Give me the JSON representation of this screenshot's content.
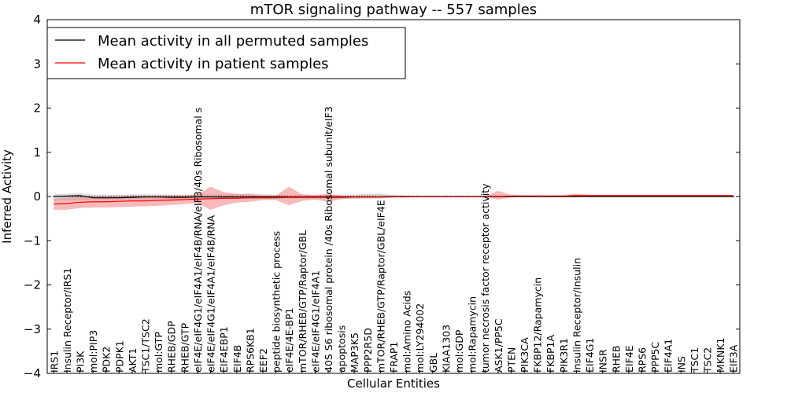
{
  "chart_data": {
    "type": "line",
    "title": "mTOR signaling pathway -- 557 samples",
    "xlabel": "Cellular Entities",
    "ylabel": "Inferred Activity",
    "ylim": [
      -4,
      4
    ],
    "yticks": [
      -4,
      -3,
      -2,
      -1,
      0,
      1,
      2,
      3,
      4
    ],
    "ytick_labels": [
      "−4",
      "−3",
      "−2",
      "−1",
      "0",
      "1",
      "2",
      "3",
      "4"
    ],
    "grid": false,
    "legend_position": "top-left",
    "colors": {
      "permuted": "#000000",
      "patient": "#ff0000",
      "permuted_band": "#bfbfbf",
      "patient_band": "#f08080"
    },
    "categories": [
      "IRS1",
      "Insulin Receptor/IRS1",
      "PI3K",
      "mol:PIP3",
      "PDK2",
      "PDPK1",
      "AKT1",
      "TSC1/TSC2",
      "mol:GTP",
      "RHEB/GDP",
      "RHEB/GTP",
      "eIF4E/eIF4G1/eIF4A1/eIF4B/RNA/eIF3/40s Ribosomal s",
      "eIF4E/eIF4G1/eIF4A1/eIF4B/RNA",
      "EIF4EBP1",
      "EIF4B",
      "RPS6KB1",
      "EEF2",
      "peptide biosynthetic process",
      "eIF4E/4E-BP1",
      "mTOR/RHEB/GTP/Raptor/GBL",
      "eIF4E/eIF4G1/eIF4A1",
      "40S S6 ribosomal protein /40s Ribosomal subunit/eIF3",
      "apoptosis",
      "MAP3K5",
      "PPP2R5D",
      "mTOR/RHEB/GTP/Raptor/GBL/eIF4E",
      "FRAP1",
      "mol:Amino Acids",
      "mol:LY294002",
      "GBL",
      "KIAA1303",
      "mol:GDP",
      "mol:Rapamycin",
      "tumor necrosis factor receptor activity",
      "ASK1/PP5C",
      "PTEN",
      "PIK3CA",
      "FKBP12/Rapamycin",
      "FKBP1A",
      "PIK3R1",
      "Insulin Receptor/Insulin",
      "EIF4G1",
      "INSR",
      "RHEB",
      "EIF4E",
      "RPS6",
      "PPP5C",
      "EIF4A1",
      "INS",
      "TSC1",
      "TSC2",
      "MKNK1",
      "EIF3A"
    ],
    "series": [
      {
        "name": "Mean activity in all permuted samples",
        "values": [
          0.0,
          0.01,
          0.02,
          -0.03,
          -0.03,
          -0.03,
          -0.02,
          -0.01,
          -0.01,
          -0.02,
          -0.02,
          -0.01,
          -0.01,
          -0.01,
          -0.01,
          -0.01,
          -0.01,
          -0.01,
          -0.01,
          -0.01,
          -0.01,
          -0.01,
          -0.01,
          -0.01,
          -0.01,
          -0.01,
          0.0,
          0.0,
          0.0,
          0.0,
          0.0,
          0.0,
          0.0,
          0.0,
          0.0,
          0.0,
          0.0,
          0.0,
          0.0,
          0.0,
          0.0,
          0.0,
          0.0,
          0.0,
          0.0,
          0.0,
          0.0,
          0.0,
          0.0,
          0.0,
          0.0,
          0.0,
          0.0
        ],
        "band_lower": [
          -0.1,
          -0.09,
          -0.08,
          -0.08,
          -0.08,
          -0.08,
          -0.07,
          -0.07,
          -0.07,
          -0.07,
          -0.07,
          -0.06,
          -0.06,
          -0.05,
          -0.05,
          -0.05,
          -0.05,
          -0.05,
          -0.05,
          -0.05,
          -0.05,
          -0.05,
          -0.05,
          -0.05,
          -0.05,
          -0.05,
          -0.03,
          -0.03,
          -0.02,
          -0.02,
          -0.02,
          -0.02,
          -0.02,
          -0.02,
          -0.02,
          -0.02,
          -0.02,
          -0.02,
          -0.02,
          -0.02,
          -0.02,
          -0.02,
          -0.02,
          -0.02,
          -0.02,
          -0.02,
          -0.02,
          -0.02,
          -0.02,
          -0.02,
          -0.02,
          -0.02,
          -0.02
        ],
        "band_upper": [
          0.05,
          0.06,
          0.07,
          0.04,
          0.04,
          0.04,
          0.05,
          0.05,
          0.05,
          0.04,
          0.04,
          0.05,
          0.05,
          0.05,
          0.05,
          0.07,
          0.05,
          0.04,
          0.04,
          0.04,
          0.04,
          0.04,
          0.04,
          0.04,
          0.06,
          0.06,
          0.03,
          0.02,
          0.02,
          0.02,
          0.02,
          0.02,
          0.02,
          0.02,
          0.02,
          0.02,
          0.02,
          0.02,
          0.02,
          0.02,
          0.02,
          0.02,
          0.02,
          0.02,
          0.02,
          0.02,
          0.02,
          0.02,
          0.02,
          0.02,
          0.02,
          0.02,
          0.02
        ]
      },
      {
        "name": "Mean activity in patient samples",
        "values": [
          -0.17,
          -0.16,
          -0.13,
          -0.12,
          -0.12,
          -0.11,
          -0.1,
          -0.1,
          -0.09,
          -0.08,
          -0.07,
          -0.06,
          -0.05,
          -0.04,
          -0.04,
          -0.03,
          -0.03,
          -0.03,
          -0.02,
          -0.02,
          -0.02,
          -0.02,
          -0.02,
          -0.01,
          -0.01,
          -0.01,
          0.0,
          0.0,
          0.0,
          0.0,
          0.0,
          0.0,
          0.0,
          0.0,
          0.0,
          0.01,
          0.01,
          0.01,
          0.01,
          0.01,
          0.02,
          0.02,
          0.02,
          0.02,
          0.02,
          0.02,
          0.02,
          0.02,
          0.02,
          0.02,
          0.02,
          0.02,
          0.02
        ],
        "band_lower": [
          -0.3,
          -0.3,
          -0.26,
          -0.25,
          -0.25,
          -0.24,
          -0.23,
          -0.22,
          -0.21,
          -0.19,
          -0.17,
          -0.15,
          -0.3,
          -0.2,
          -0.14,
          -0.12,
          -0.08,
          -0.08,
          -0.2,
          -0.1,
          -0.07,
          -0.12,
          -0.06,
          -0.04,
          -0.04,
          -0.03,
          -0.02,
          -0.02,
          -0.01,
          -0.01,
          -0.01,
          -0.01,
          -0.01,
          -0.01,
          -0.07,
          -0.02,
          -0.01,
          -0.01,
          -0.01,
          -0.01,
          -0.01,
          0.0,
          0.0,
          0.0,
          0.0,
          0.0,
          0.0,
          0.0,
          0.0,
          0.0,
          0.0,
          0.0,
          0.0
        ],
        "band_upper": [
          -0.05,
          -0.03,
          -0.01,
          -0.0,
          0.0,
          0.01,
          0.02,
          0.02,
          0.02,
          0.03,
          0.03,
          0.04,
          0.22,
          0.1,
          0.06,
          0.05,
          0.02,
          0.02,
          0.22,
          0.05,
          0.03,
          0.06,
          0.02,
          0.02,
          0.03,
          0.02,
          0.02,
          0.02,
          0.01,
          0.01,
          0.01,
          0.01,
          0.01,
          0.01,
          0.13,
          0.04,
          0.03,
          0.03,
          0.03,
          0.03,
          0.06,
          0.04,
          0.04,
          0.04,
          0.04,
          0.04,
          0.04,
          0.04,
          0.04,
          0.04,
          0.04,
          0.04,
          0.04
        ]
      }
    ]
  }
}
